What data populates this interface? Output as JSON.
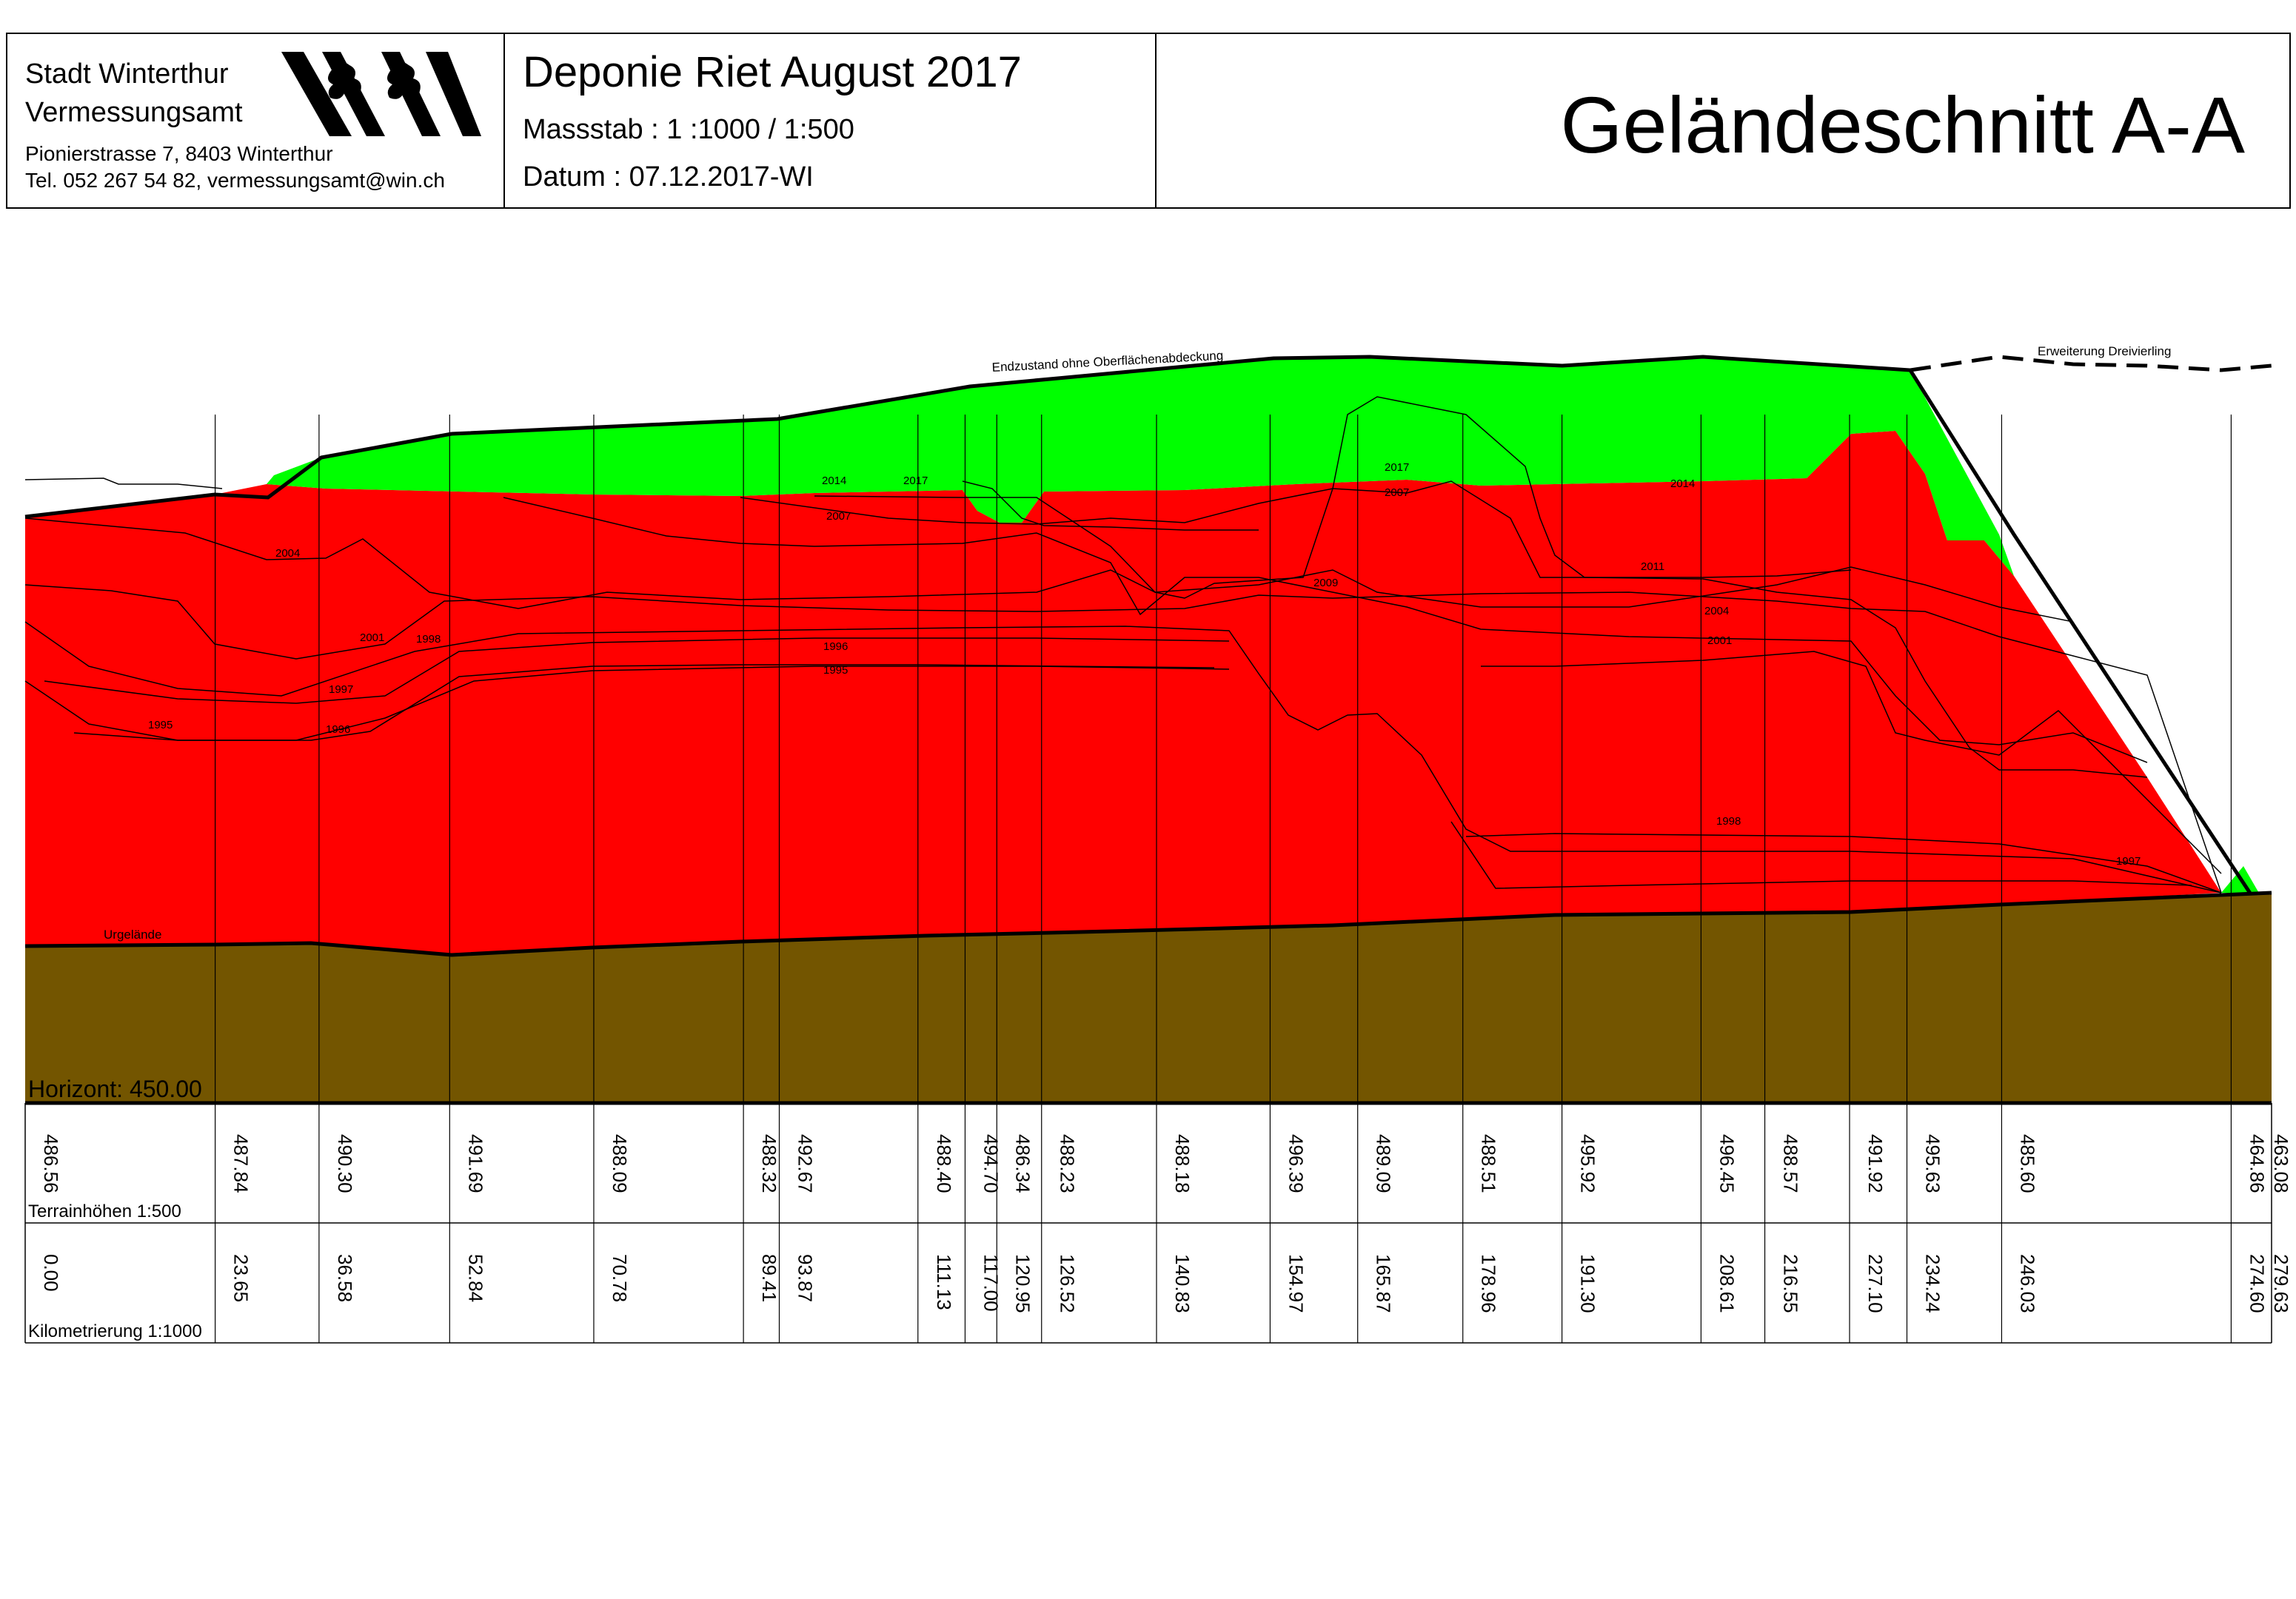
{
  "header": {
    "org_name": "Stadt Winterthur",
    "org_dept": "Vermessungsamt",
    "address": "Pionierstrasse 7, 8403 Winterthur",
    "contact": "Tel. 052 267 54 82, vermessungsamt@win.ch",
    "project_title": "Deponie Riet August 2017",
    "scale": "Massstab :  1 :1000 / 1:500",
    "date": "Datum :  07.12.2017-WI",
    "section_title": "Geländeschnitt A-A",
    "logo_icon": "winterthur-coat-of-arms-icon"
  },
  "profile": {
    "horizon_label": "Horizont:  450.00",
    "terrain_label": "Terrainhöhen 1:500",
    "station_label": "Kilometrierung 1:1000",
    "stations": [
      "0.00",
      "23.65",
      "36.58",
      "52.84",
      "70.78",
      "89.41",
      "93.87",
      "111.13",
      "117.00",
      "120.95",
      "126.52",
      "140.83",
      "154.97",
      "165.87",
      "178.96",
      "191.30",
      "208.61",
      "216.55",
      "227.10",
      "234.24",
      "246.03",
      "274.60",
      "279.63"
    ],
    "heights": [
      "486.56",
      "487.84",
      "490.30",
      "491.69",
      "488.09",
      "488.32",
      "492.67",
      "488.40",
      "494.70",
      "486.34",
      "488.23",
      "488.18",
      "496.39",
      "489.09",
      "488.51",
      "495.92",
      "496.45",
      "488.57",
      "491.92",
      "495.63",
      "485.60",
      "464.86",
      "463.08"
    ],
    "surface_labels": {
      "final": "Endzustand ohne Oberflächenabdeckung",
      "extension": "Erweiterung Dreivierling",
      "original": "Urgelände"
    },
    "year_labels": [
      "2004",
      "2001",
      "1998",
      "1997",
      "1995",
      "1996",
      "2014",
      "2017",
      "2007",
      "1996",
      "1995",
      "2017",
      "2007",
      "2014",
      "2009",
      "2011",
      "2004",
      "2001",
      "1998",
      "1997"
    ],
    "colors": {
      "deposit": "#ff0000",
      "cover": "#00ff00",
      "ground": "#735500",
      "lines": "#000000"
    }
  }
}
